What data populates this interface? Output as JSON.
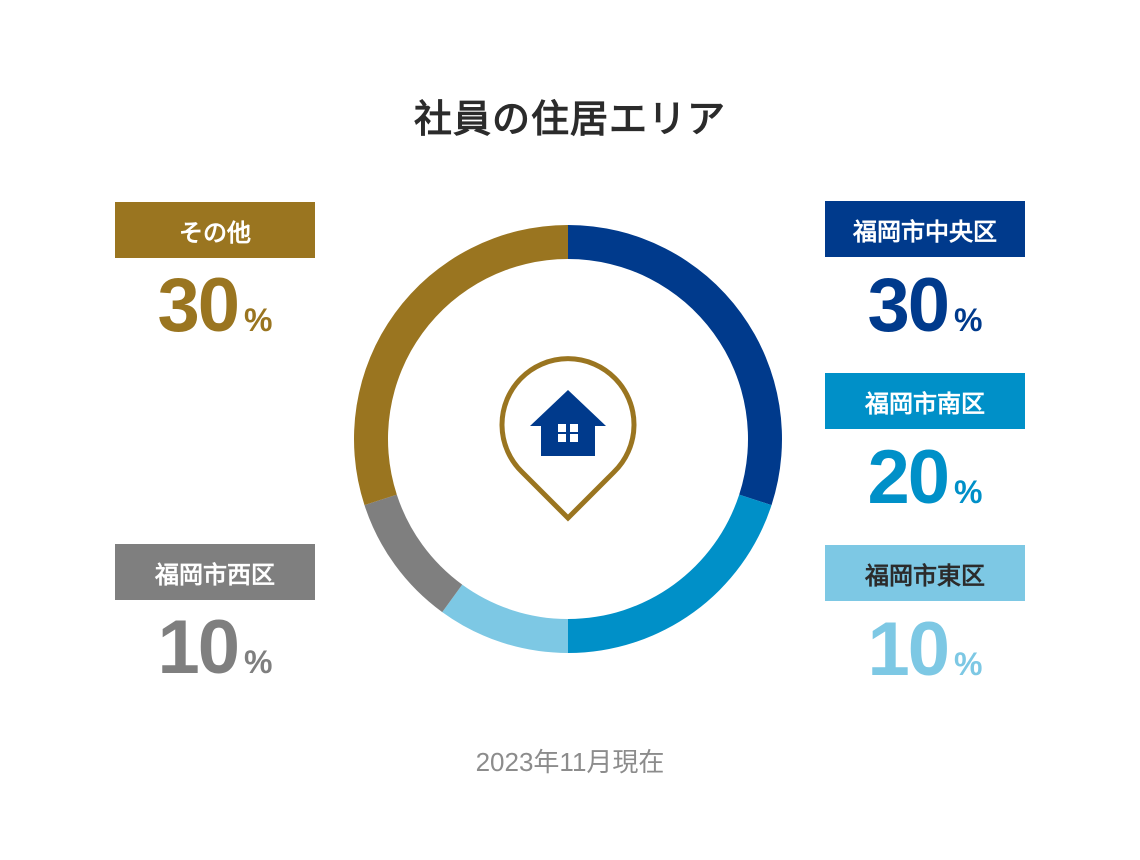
{
  "title": "社員の住居エリア",
  "footnote": "2023年11月現在",
  "percent_sign": "%",
  "chart_data": {
    "type": "pie",
    "title": "社員の住居エリア",
    "note": "2023年11月現在",
    "unit": "%",
    "categories": [
      "福岡市中央区",
      "福岡市南区",
      "福岡市東区",
      "福岡市西区",
      "その他"
    ],
    "values": [
      30,
      20,
      10,
      10,
      30
    ],
    "colors": [
      "#003a8c",
      "#0090c8",
      "#7dc8e4",
      "#7f7f7f",
      "#9a7520"
    ],
    "label_text_colors": [
      "#ffffff",
      "#ffffff",
      "#2b2b2b",
      "#ffffff",
      "#ffffff"
    ],
    "center_icon": "house-pin-icon",
    "pin_color": "#9a7520",
    "house_color": "#003a8c"
  }
}
